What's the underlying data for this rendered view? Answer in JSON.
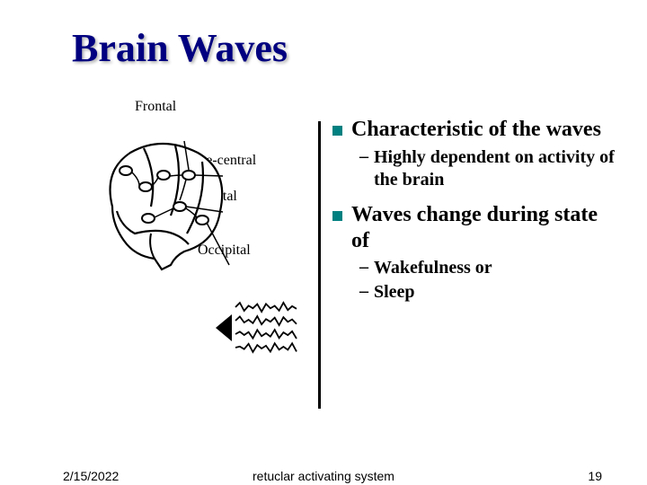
{
  "title": "Brain Waves",
  "diagram": {
    "labels": {
      "frontal": "Frontal",
      "precentral": "Pre-central",
      "parietal": "Parietal",
      "occipital": "Occipital"
    },
    "brain": {
      "outline_color": "#000000",
      "stroke_width": 2.2,
      "region_fill": "#ffffff"
    },
    "waves": {
      "color": "#000000",
      "stroke_width": 1.8,
      "rows": 4,
      "width": 90,
      "amplitude": 5,
      "cycles": 7
    }
  },
  "content": {
    "bullet_color": "#008080",
    "bullets": [
      {
        "text": "Characteristic of the waves",
        "subs": [
          "Highly dependent on activity of the brain"
        ]
      },
      {
        "text": "Waves change during state of",
        "subs": [
          "Wakefulness or",
          "Sleep"
        ]
      }
    ]
  },
  "divider_color": "#000000",
  "footer": {
    "date": "2/15/2022",
    "center": "retuclar activating system",
    "page": "19"
  },
  "colors": {
    "title": "#000080",
    "background": "#ffffff",
    "text": "#000000"
  }
}
